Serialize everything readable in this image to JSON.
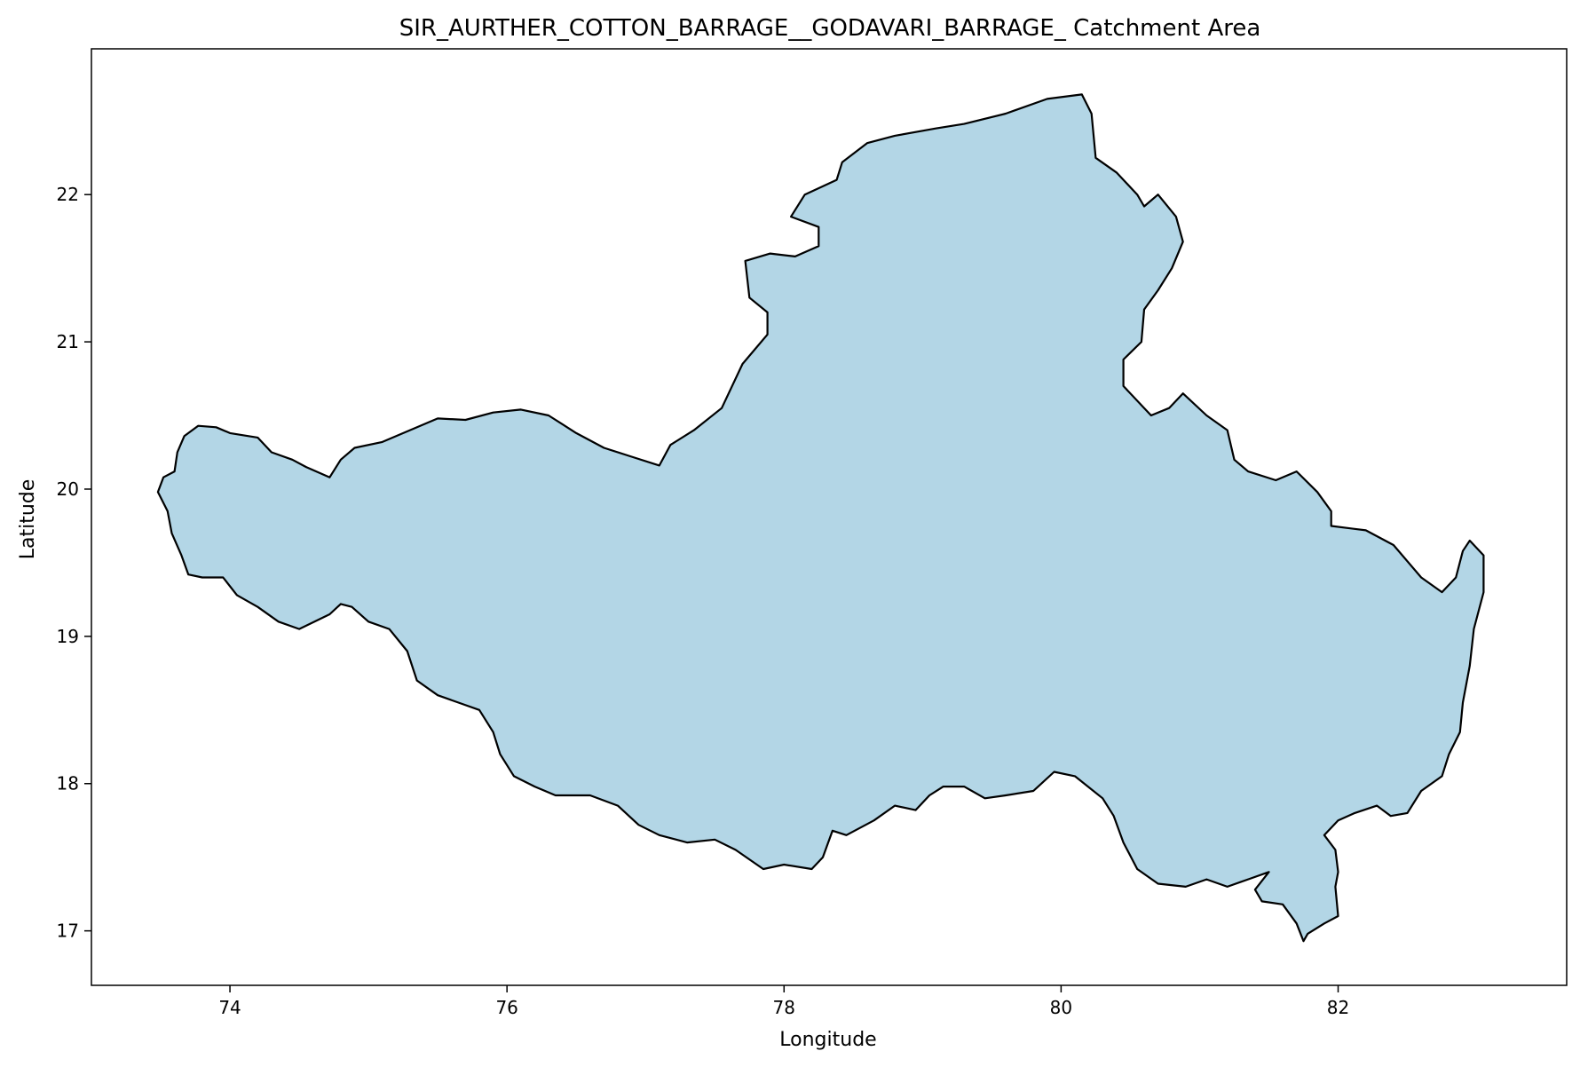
{
  "chart_data": {
    "type": "map",
    "title": "SIR_AURTHER_COTTON_BARRAGE__GODAVARI_BARRAGE_ Catchment Area",
    "xlabel": "Longitude",
    "ylabel": "Latitude",
    "xlim": [
      73.0,
      83.65
    ],
    "ylim": [
      16.63,
      22.99
    ],
    "xticks": [
      74,
      76,
      78,
      80,
      82
    ],
    "yticks": [
      17,
      18,
      19,
      20,
      21,
      22
    ],
    "grid": false,
    "fill_color": "#b3d6e6",
    "edge_color": "#000000",
    "boundary": [
      [
        73.48,
        19.98
      ],
      [
        73.52,
        20.08
      ],
      [
        73.6,
        20.12
      ],
      [
        73.62,
        20.25
      ],
      [
        73.67,
        20.36
      ],
      [
        73.77,
        20.43
      ],
      [
        73.9,
        20.42
      ],
      [
        74.0,
        20.38
      ],
      [
        74.2,
        20.35
      ],
      [
        74.3,
        20.25
      ],
      [
        74.45,
        20.2
      ],
      [
        74.55,
        20.15
      ],
      [
        74.72,
        20.08
      ],
      [
        74.8,
        20.2
      ],
      [
        74.9,
        20.28
      ],
      [
        75.1,
        20.32
      ],
      [
        75.3,
        20.4
      ],
      [
        75.5,
        20.48
      ],
      [
        75.7,
        20.47
      ],
      [
        75.9,
        20.52
      ],
      [
        76.1,
        20.54
      ],
      [
        76.3,
        20.5
      ],
      [
        76.5,
        20.38
      ],
      [
        76.7,
        20.28
      ],
      [
        76.9,
        20.22
      ],
      [
        77.1,
        20.16
      ],
      [
        77.18,
        20.3
      ],
      [
        77.35,
        20.4
      ],
      [
        77.55,
        20.55
      ],
      [
        77.7,
        20.85
      ],
      [
        77.88,
        21.05
      ],
      [
        77.88,
        21.2
      ],
      [
        77.75,
        21.3
      ],
      [
        77.72,
        21.55
      ],
      [
        77.9,
        21.6
      ],
      [
        78.08,
        21.58
      ],
      [
        78.25,
        21.65
      ],
      [
        78.25,
        21.78
      ],
      [
        78.05,
        21.85
      ],
      [
        78.15,
        22.0
      ],
      [
        78.38,
        22.1
      ],
      [
        78.42,
        22.22
      ],
      [
        78.6,
        22.35
      ],
      [
        78.8,
        22.4
      ],
      [
        79.1,
        22.45
      ],
      [
        79.3,
        22.48
      ],
      [
        79.6,
        22.55
      ],
      [
        79.9,
        22.65
      ],
      [
        80.15,
        22.68
      ],
      [
        80.22,
        22.55
      ],
      [
        80.25,
        22.25
      ],
      [
        80.4,
        22.15
      ],
      [
        80.55,
        22.0
      ],
      [
        80.6,
        21.92
      ],
      [
        80.7,
        22.0
      ],
      [
        80.83,
        21.85
      ],
      [
        80.88,
        21.68
      ],
      [
        80.8,
        21.5
      ],
      [
        80.7,
        21.35
      ],
      [
        80.6,
        21.22
      ],
      [
        80.58,
        21.0
      ],
      [
        80.45,
        20.88
      ],
      [
        80.45,
        20.7
      ],
      [
        80.6,
        20.55
      ],
      [
        80.65,
        20.5
      ],
      [
        80.78,
        20.55
      ],
      [
        80.88,
        20.65
      ],
      [
        81.05,
        20.5
      ],
      [
        81.2,
        20.4
      ],
      [
        81.25,
        20.2
      ],
      [
        81.35,
        20.12
      ],
      [
        81.55,
        20.06
      ],
      [
        81.7,
        20.12
      ],
      [
        81.85,
        19.98
      ],
      [
        81.95,
        19.85
      ],
      [
        81.95,
        19.75
      ],
      [
        82.2,
        19.72
      ],
      [
        82.4,
        19.62
      ],
      [
        82.6,
        19.4
      ],
      [
        82.75,
        19.3
      ],
      [
        82.85,
        19.4
      ],
      [
        82.9,
        19.58
      ],
      [
        82.95,
        19.65
      ],
      [
        83.05,
        19.55
      ],
      [
        83.05,
        19.3
      ],
      [
        82.98,
        19.05
      ],
      [
        82.95,
        18.8
      ],
      [
        82.9,
        18.55
      ],
      [
        82.88,
        18.35
      ],
      [
        82.8,
        18.2
      ],
      [
        82.75,
        18.05
      ],
      [
        82.6,
        17.95
      ],
      [
        82.5,
        17.8
      ],
      [
        82.38,
        17.78
      ],
      [
        82.28,
        17.85
      ],
      [
        82.12,
        17.8
      ],
      [
        82.0,
        17.75
      ],
      [
        81.9,
        17.65
      ],
      [
        81.98,
        17.55
      ],
      [
        82.0,
        17.4
      ],
      [
        81.98,
        17.3
      ],
      [
        82.0,
        17.1
      ],
      [
        81.9,
        17.05
      ],
      [
        81.78,
        16.98
      ],
      [
        81.75,
        16.93
      ],
      [
        81.7,
        17.05
      ],
      [
        81.6,
        17.18
      ],
      [
        81.45,
        17.2
      ],
      [
        81.4,
        17.28
      ],
      [
        81.5,
        17.4
      ],
      [
        81.35,
        17.35
      ],
      [
        81.2,
        17.3
      ],
      [
        81.05,
        17.35
      ],
      [
        80.9,
        17.3
      ],
      [
        80.7,
        17.32
      ],
      [
        80.55,
        17.42
      ],
      [
        80.45,
        17.6
      ],
      [
        80.38,
        17.78
      ],
      [
        80.3,
        17.9
      ],
      [
        80.1,
        18.05
      ],
      [
        79.95,
        18.08
      ],
      [
        79.8,
        17.95
      ],
      [
        79.6,
        17.92
      ],
      [
        79.45,
        17.9
      ],
      [
        79.3,
        17.98
      ],
      [
        79.15,
        17.98
      ],
      [
        79.05,
        17.92
      ],
      [
        78.95,
        17.82
      ],
      [
        78.8,
        17.85
      ],
      [
        78.65,
        17.75
      ],
      [
        78.45,
        17.65
      ],
      [
        78.35,
        17.68
      ],
      [
        78.28,
        17.5
      ],
      [
        78.2,
        17.42
      ],
      [
        78.0,
        17.45
      ],
      [
        77.85,
        17.42
      ],
      [
        77.65,
        17.55
      ],
      [
        77.5,
        17.62
      ],
      [
        77.3,
        17.6
      ],
      [
        77.1,
        17.65
      ],
      [
        76.95,
        17.72
      ],
      [
        76.8,
        17.85
      ],
      [
        76.6,
        17.92
      ],
      [
        76.35,
        17.92
      ],
      [
        76.2,
        17.98
      ],
      [
        76.05,
        18.05
      ],
      [
        75.95,
        18.2
      ],
      [
        75.9,
        18.35
      ],
      [
        75.8,
        18.5
      ],
      [
        75.65,
        18.55
      ],
      [
        75.5,
        18.6
      ],
      [
        75.35,
        18.7
      ],
      [
        75.28,
        18.9
      ],
      [
        75.15,
        19.05
      ],
      [
        75.0,
        19.1
      ],
      [
        74.88,
        19.2
      ],
      [
        74.8,
        19.22
      ],
      [
        74.72,
        19.15
      ],
      [
        74.5,
        19.05
      ],
      [
        74.35,
        19.1
      ],
      [
        74.2,
        19.2
      ],
      [
        74.05,
        19.28
      ],
      [
        73.95,
        19.4
      ],
      [
        73.8,
        19.4
      ],
      [
        73.7,
        19.42
      ],
      [
        73.65,
        19.55
      ],
      [
        73.58,
        19.7
      ],
      [
        73.55,
        19.85
      ]
    ]
  }
}
